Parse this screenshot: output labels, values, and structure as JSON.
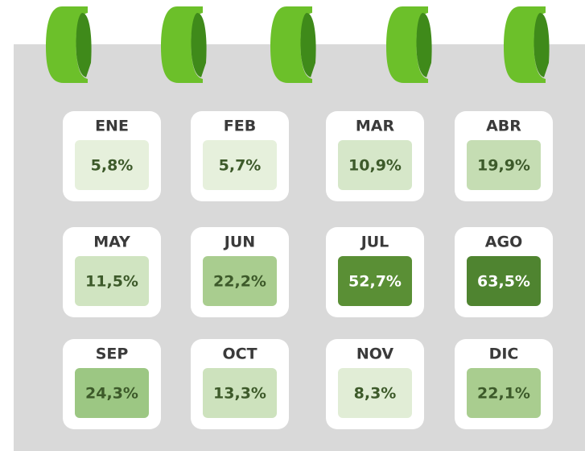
{
  "chart_data": {
    "type": "calendar",
    "categories": [
      "ENE",
      "FEB",
      "MAR",
      "ABR",
      "MAY",
      "JUN",
      "JUL",
      "AGO",
      "SEP",
      "OCT",
      "NOV",
      "DIC"
    ],
    "values": [
      5.8,
      5.7,
      10.9,
      19.9,
      11.5,
      22.2,
      52.7,
      63.5,
      24.3,
      13.3,
      8.3,
      22.1
    ],
    "value_labels": [
      "5,8%",
      "5,7%",
      "10,9%",
      "19,9%",
      "11,5%",
      "22,2%",
      "52,7%",
      "63,5%",
      "24,3%",
      "13,3%",
      "8,3%",
      "22,1%"
    ],
    "colors": [
      "#e6f0dc",
      "#e6f0dc",
      "#d6e7c9",
      "#c5ddb3",
      "#d0e4c1",
      "#a9cd8f",
      "#5a8f35",
      "#4f8430",
      "#9cc783",
      "#cde2bd",
      "#e1edd6",
      "#a9cd8f"
    ]
  }
}
